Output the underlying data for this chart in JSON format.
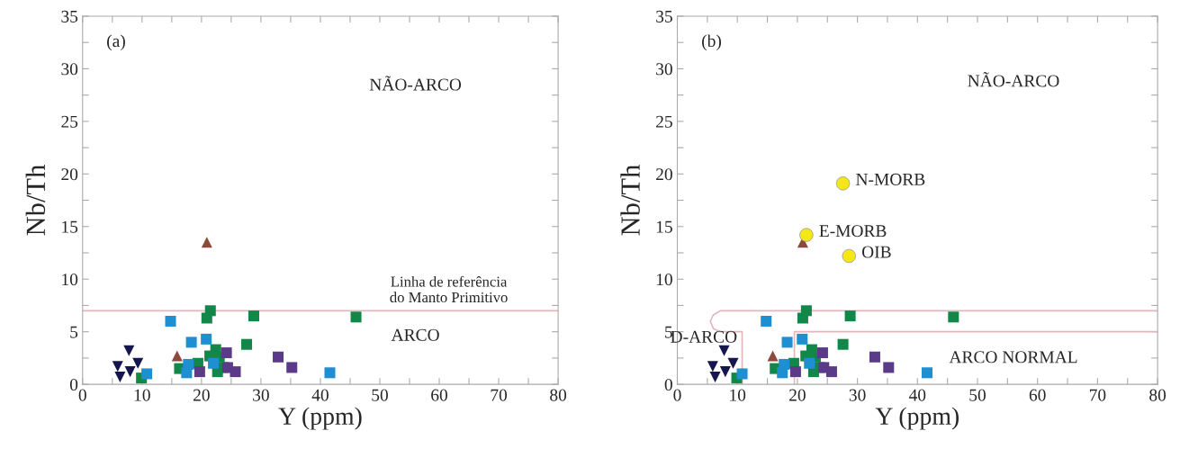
{
  "chart_data": [
    {
      "type": "scatter",
      "title": "(a)",
      "xlabel": "Y (ppm)",
      "ylabel": "Nb/Th",
      "xlim": [
        0,
        80
      ],
      "ylim": [
        0,
        35
      ],
      "xticks": [
        0,
        {
          "value": 5,
          "label": null
        },
        10,
        {
          "value": 15,
          "label": null
        },
        20,
        {
          "value": 25,
          "label": null
        },
        30,
        {
          "value": 35,
          "label": null
        },
        40,
        {
          "value": 45,
          "label": null
        },
        50,
        {
          "value": 55,
          "label": null
        },
        60,
        {
          "value": 65,
          "label": null
        },
        70,
        {
          "value": 75,
          "label": null
        },
        80
      ],
      "yticks": [
        0,
        {
          "value": 2.5,
          "label": null
        },
        5,
        {
          "value": 7.5,
          "label": null
        },
        10,
        {
          "value": 12.5,
          "label": null
        },
        15,
        {
          "value": 17.5,
          "label": null
        },
        20,
        {
          "value": 22.5,
          "label": null
        },
        25,
        {
          "value": 27.5,
          "label": null
        },
        30,
        {
          "value": 32.5,
          "label": null
        },
        35
      ],
      "grid": false,
      "legend": false,
      "ref_lines": [
        {
          "axis": "y",
          "value": 7,
          "label": "Linha de referência\ndo Manto Primitivo",
          "color": "#e0b8bc"
        }
      ],
      "annotations": [
        "NÃO-ARCO",
        "ARCO"
      ],
      "series": [
        {
          "color": "#16164f",
          "marker": "triangle_down",
          "x": [
            5.9,
            6.3,
            7.8,
            8.0,
            9.3
          ],
          "values": [
            1.7,
            0.7,
            3.2,
            1.2,
            2.0
          ]
        },
        {
          "color": "#8b4a3c",
          "marker": "triangle",
          "x": [
            20.9,
            15.9
          ],
          "values": [
            13.5,
            2.7
          ]
        },
        {
          "color": "#1e8fd0",
          "marker": "square",
          "x": [
            14.8,
            10.8,
            18.3,
            20.8,
            17.8,
            17.5,
            22.0,
            41.6
          ],
          "values": [
            6.0,
            1.0,
            4.0,
            4.3,
            1.9,
            1.1,
            2.0,
            1.1
          ]
        },
        {
          "color": "#12874a",
          "marker": "square",
          "x": [
            21.5,
            20.9,
            28.8,
            46.0,
            9.9,
            16.3,
            19.4,
            21.4,
            22.4,
            23.0,
            27.6,
            22.7,
            23.7
          ],
          "values": [
            7.0,
            6.3,
            6.5,
            6.4,
            0.6,
            1.5,
            2.0,
            2.7,
            3.3,
            2.6,
            3.8,
            1.2,
            1.6
          ]
        },
        {
          "color": "#5b3a8a",
          "marker": "square",
          "x": [
            19.7,
            24.2,
            24.4,
            25.7,
            32.9,
            35.2
          ],
          "values": [
            1.2,
            3.0,
            1.6,
            1.2,
            2.6,
            1.6
          ]
        }
      ]
    },
    {
      "type": "scatter",
      "title": "(b)",
      "xlabel": "Y (ppm)",
      "ylabel": "Nb/Th",
      "xlim": [
        0,
        80
      ],
      "ylim": [
        0,
        35
      ],
      "xticks": [
        0,
        {
          "value": 5,
          "label": null
        },
        10,
        {
          "value": 15,
          "label": null
        },
        20,
        {
          "value": 25,
          "label": null
        },
        30,
        {
          "value": 35,
          "label": null
        },
        40,
        {
          "value": 45,
          "label": null
        },
        50,
        {
          "value": 55,
          "label": null
        },
        60,
        {
          "value": 65,
          "label": null
        },
        70,
        {
          "value": 75,
          "label": null
        },
        80
      ],
      "yticks": [
        0,
        {
          "value": 2.5,
          "label": null
        },
        5,
        {
          "value": 7.5,
          "label": null
        },
        10,
        {
          "value": 12.5,
          "label": null
        },
        15,
        {
          "value": 17.5,
          "label": null
        },
        20,
        {
          "value": 22.5,
          "label": null
        },
        25,
        {
          "value": 27.5,
          "label": null
        },
        30,
        {
          "value": 32.5,
          "label": null
        },
        35
      ],
      "grid": false,
      "legend": false,
      "annotations": [
        "NÃO-ARCO",
        "ARCO NORMAL",
        "D-ARCO",
        {
          "text": "N-MORB",
          "x": 27.6,
          "y": 19.1
        },
        {
          "text": "E-MORB",
          "x": 21.5,
          "y": 14.2
        },
        {
          "text": "OIB",
          "x": 28.6,
          "y": 12.2
        }
      ],
      "series": [
        {
          "type": "line",
          "color": "#e0b8bc",
          "x": [
            80,
            7.2,
            6.0,
            5.5,
            6.0,
            7.2,
            10.8,
            10.8
          ],
          "values": [
            7.0,
            7.0,
            6.6,
            6.0,
            5.3,
            5.0,
            5.0,
            0
          ]
        },
        {
          "type": "line",
          "color": "#e0b8bc",
          "x": [
            80,
            19.5,
            19.5
          ],
          "values": [
            5.0,
            5.0,
            0
          ]
        },
        {
          "color": "#16164f",
          "marker": "triangle_down",
          "x": [
            5.9,
            6.3,
            7.8,
            8.0,
            9.3
          ],
          "values": [
            1.7,
            0.7,
            3.2,
            1.2,
            2.0
          ]
        },
        {
          "color": "#8b4a3c",
          "marker": "triangle",
          "x": [
            20.9,
            15.9
          ],
          "values": [
            13.5,
            2.7
          ]
        },
        {
          "color": "#1e8fd0",
          "marker": "square",
          "x": [
            14.8,
            10.8,
            18.3,
            20.8,
            17.8,
            17.5,
            22.0,
            41.6
          ],
          "values": [
            6.0,
            1.0,
            4.0,
            4.3,
            1.9,
            1.1,
            2.0,
            1.1
          ]
        },
        {
          "color": "#12874a",
          "marker": "square",
          "x": [
            21.5,
            20.9,
            28.8,
            46.0,
            9.9,
            16.3,
            19.4,
            21.4,
            22.4,
            23.0,
            27.6,
            22.7,
            23.7
          ],
          "values": [
            7.0,
            6.3,
            6.5,
            6.4,
            0.6,
            1.5,
            2.0,
            2.7,
            3.3,
            2.6,
            3.8,
            1.2,
            1.6
          ]
        },
        {
          "color": "#5b3a8a",
          "marker": "square",
          "x": [
            19.7,
            24.2,
            24.4,
            25.7,
            32.9,
            35.2
          ],
          "values": [
            1.2,
            3.0,
            1.6,
            1.2,
            2.6,
            1.6
          ]
        },
        {
          "color": "#f5e616",
          "x": [
            27.6,
            21.5,
            28.6
          ],
          "values": [
            19.1,
            14.2,
            12.2
          ]
        }
      ]
    }
  ]
}
